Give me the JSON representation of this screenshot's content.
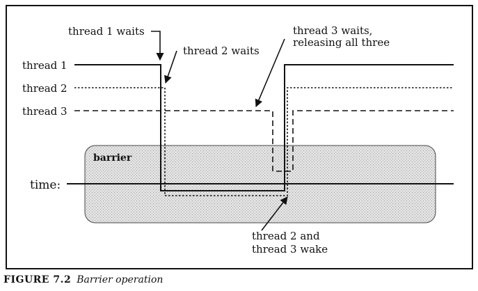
{
  "diagram": {
    "thread_labels": [
      "thread 1",
      "thread 2",
      "thread 3"
    ],
    "barrier_label": "barrier",
    "time_label": "time:",
    "annotations": {
      "thread1_waits": "thread 1 waits",
      "thread2_waits": "thread 2 waits",
      "thread3_waits_line1": "thread 3 waits,",
      "thread3_waits_line2": "releasing all three",
      "wake_line1": "thread 2 and",
      "wake_line2": "thread 3 wake"
    },
    "colors": {
      "line": "#111111",
      "barrier_fill": "#d4d4d4",
      "frame": "#111111"
    }
  },
  "caption": {
    "figure_number": "FIGURE 7.2",
    "title": "Barrier operation"
  }
}
